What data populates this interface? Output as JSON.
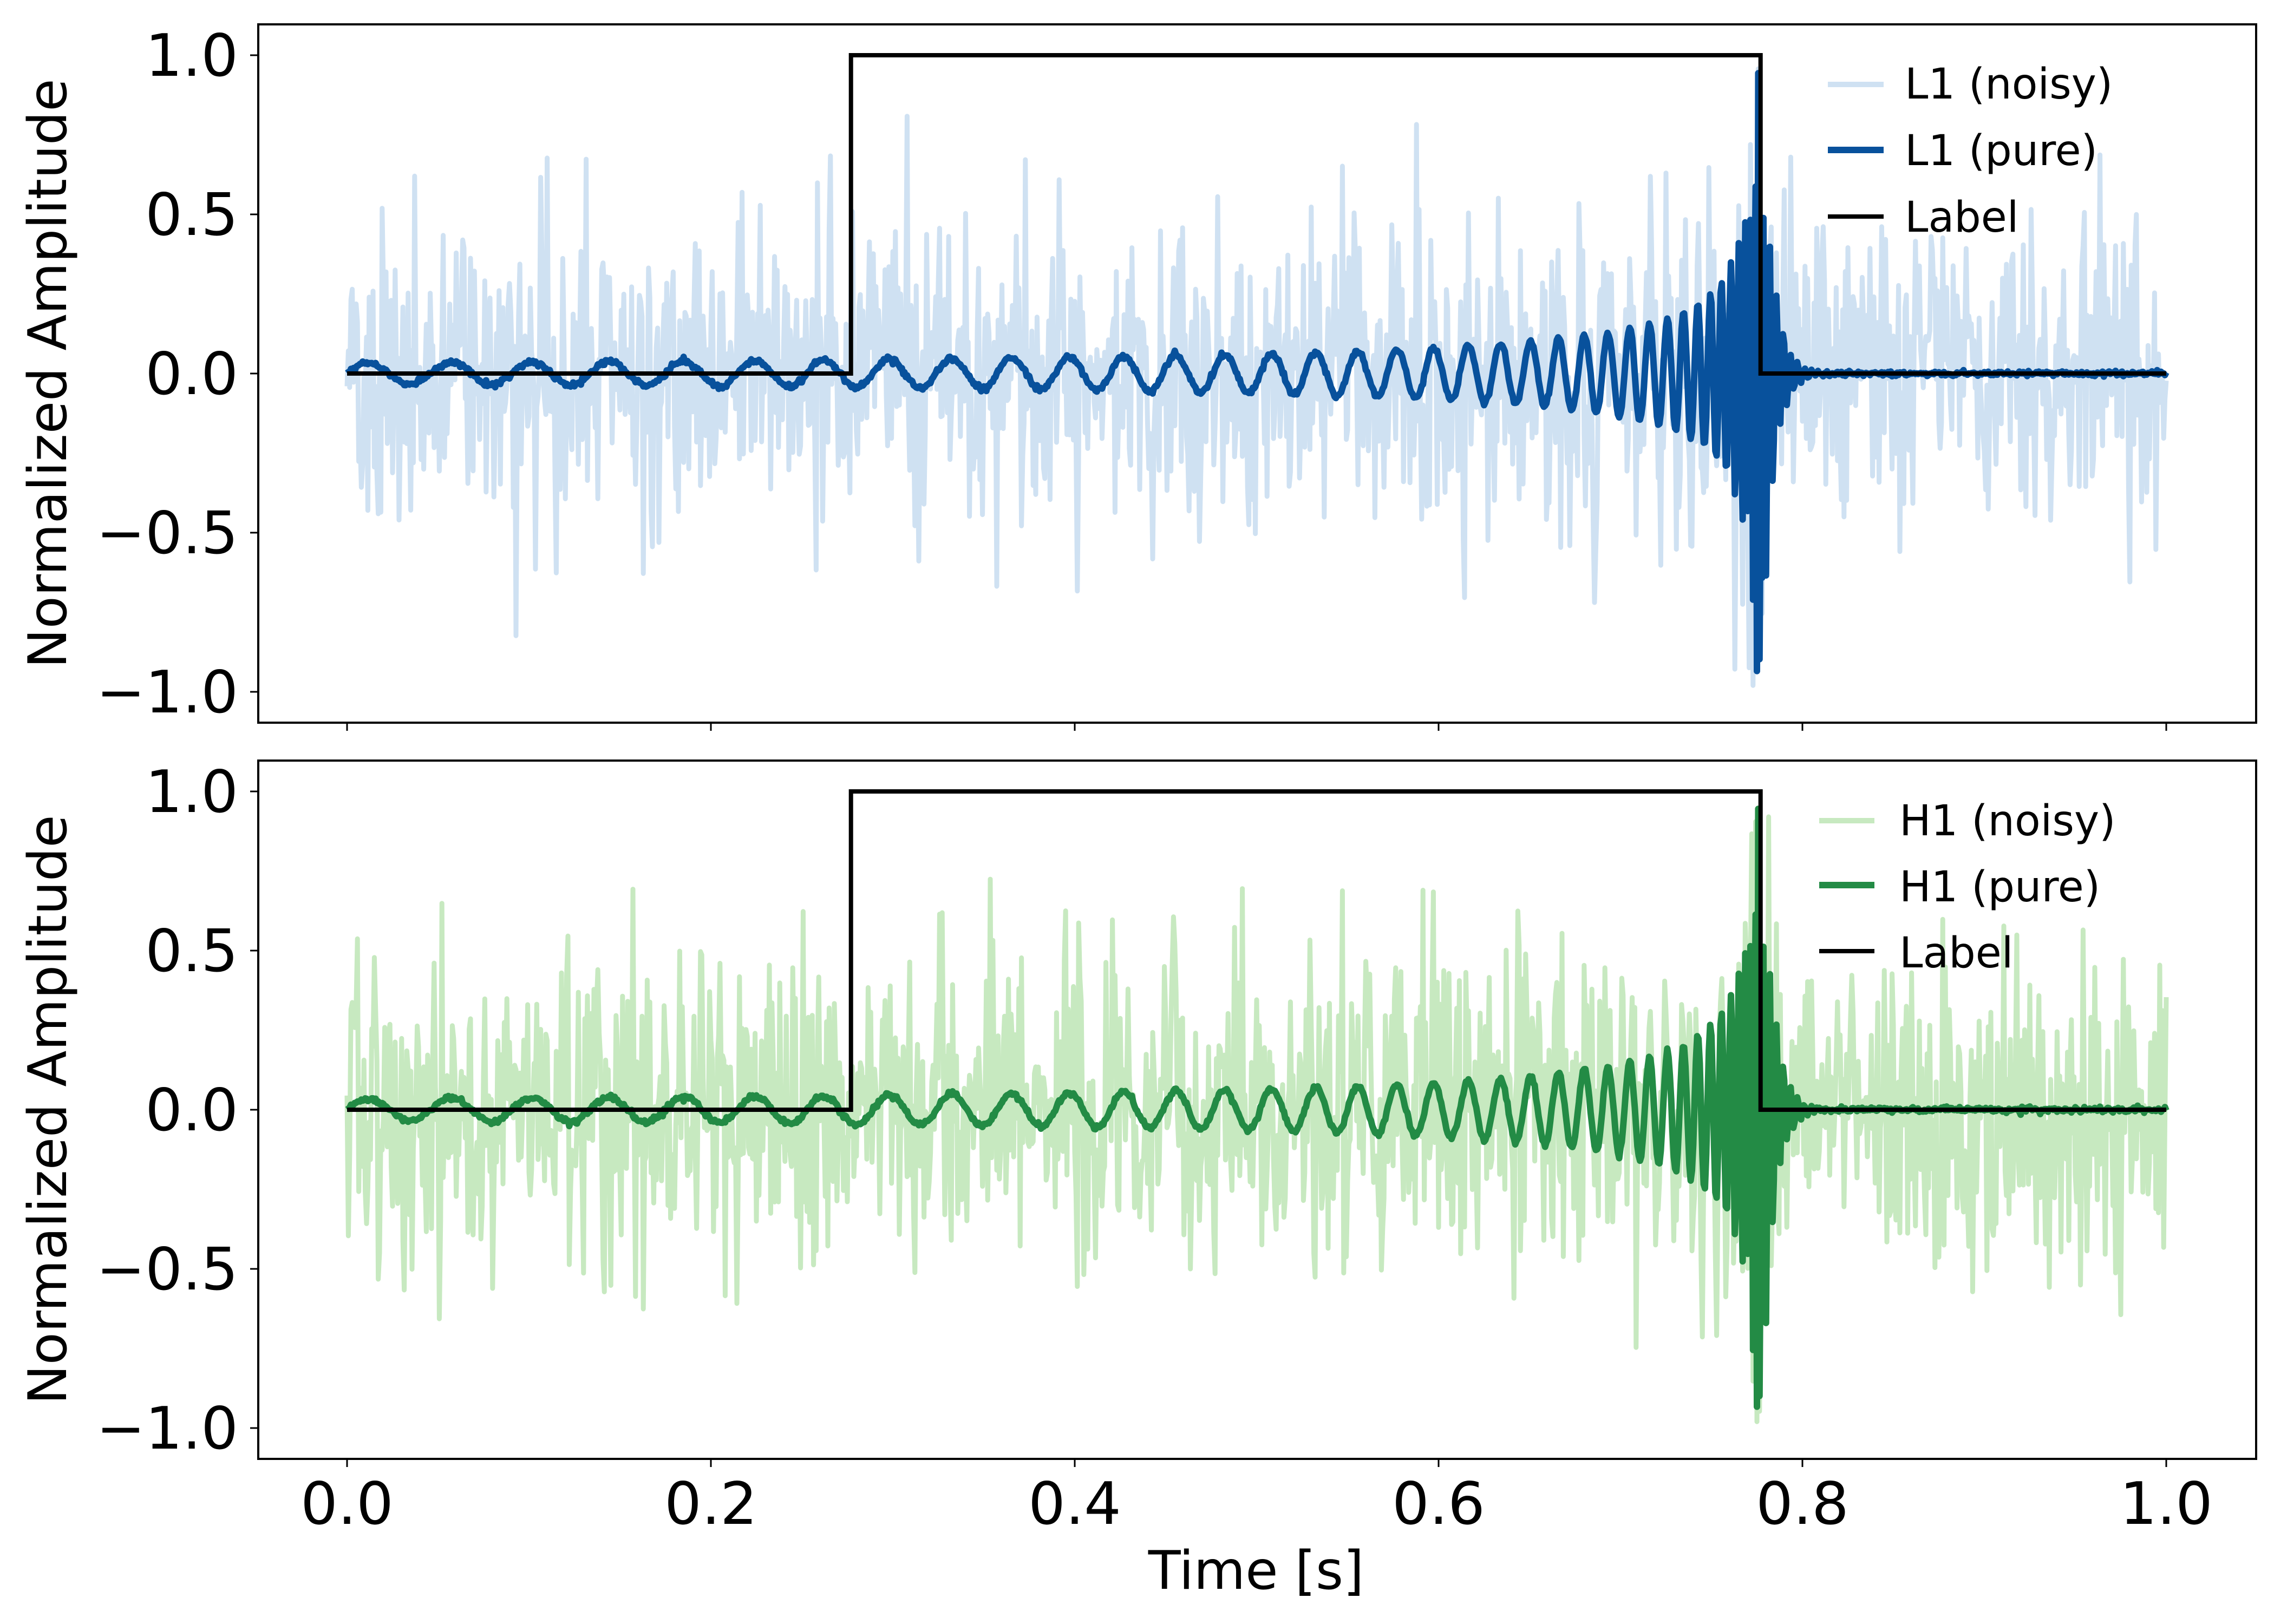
{
  "chart_data": [
    {
      "type": "line",
      "panel": "top",
      "title": "",
      "xlabel": "",
      "ylabel": "Normalized Amplitude",
      "xlim": [
        -0.05,
        1.05
      ],
      "ylim": [
        -1.1,
        1.1
      ],
      "xticks": [
        0.0,
        0.2,
        0.4,
        0.6,
        0.8,
        1.0
      ],
      "xtick_labels_visible": false,
      "yticks": [
        1.0,
        0.5,
        0.0,
        -0.5,
        -1.0
      ],
      "ytick_labels": [
        "1.0",
        "0.5",
        "0.0",
        "−0.5",
        "−1.0"
      ],
      "grid": false,
      "legend_position": "upper right",
      "series": [
        {
          "name": "L1 (noisy)",
          "color": "#cfe1f2",
          "style": "noise band, approx amplitude ±0.3 to ±0.9"
        },
        {
          "name": "L1 (pure)",
          "color": "#08519c",
          "style": "chirp, frequency and amplitude increasing to merger at t≈0.78 s, then ringdown to 0"
        },
        {
          "name": "Label",
          "color": "#000000",
          "x": [
            0.0,
            0.277,
            0.277,
            0.777,
            0.777,
            1.0
          ],
          "y": [
            0,
            0,
            1,
            1,
            0,
            0
          ]
        }
      ],
      "pure_envelope_peaks": {
        "t": [
          0.1,
          0.3,
          0.5,
          0.6,
          0.7,
          0.75,
          0.775,
          0.785
        ],
        "amplitude": [
          0.05,
          0.08,
          0.12,
          0.18,
          0.3,
          0.5,
          0.98,
          0.9
        ]
      }
    },
    {
      "type": "line",
      "panel": "bottom",
      "title": "",
      "xlabel": "Time [s]",
      "ylabel": "Normalized Amplitude",
      "xlim": [
        -0.05,
        1.05
      ],
      "ylim": [
        -1.1,
        1.1
      ],
      "xticks": [
        0.0,
        0.2,
        0.4,
        0.6,
        0.8,
        1.0
      ],
      "xtick_labels": [
        "0.0",
        "0.2",
        "0.4",
        "0.6",
        "0.8",
        "1.0"
      ],
      "yticks": [
        1.0,
        0.5,
        0.0,
        -0.5,
        -1.0
      ],
      "ytick_labels": [
        "1.0",
        "0.5",
        "0.0",
        "−0.5",
        "−1.0"
      ],
      "grid": false,
      "legend_position": "upper right",
      "series": [
        {
          "name": "H1 (noisy)",
          "color": "#c7e9c0",
          "style": "noise band, approx amplitude ±0.3 to ±0.9"
        },
        {
          "name": "H1 (pure)",
          "color": "#238b45",
          "style": "chirp, frequency and amplitude increasing to merger at t≈0.78 s, then ringdown to 0"
        },
        {
          "name": "Label",
          "color": "#000000",
          "x": [
            0.0,
            0.277,
            0.277,
            0.777,
            0.777,
            1.0
          ],
          "y": [
            0,
            0,
            1,
            1,
            0,
            0
          ]
        }
      ],
      "pure_envelope_peaks": {
        "t": [
          0.1,
          0.3,
          0.5,
          0.6,
          0.7,
          0.75,
          0.775,
          0.785
        ],
        "amplitude": [
          0.05,
          0.08,
          0.12,
          0.18,
          0.3,
          0.55,
          1.0,
          0.78
        ]
      }
    }
  ],
  "panels": {
    "top": {
      "ylabel": "Normalized Amplitude",
      "yticks": [
        "1.0",
        "0.5",
        "0.0",
        "−0.5",
        "−1.0"
      ],
      "legend": [
        "L1 (noisy)",
        "L1 (pure)",
        "Label"
      ]
    },
    "bottom": {
      "ylabel": "Normalized Amplitude",
      "yticks": [
        "1.0",
        "0.5",
        "0.0",
        "−0.5",
        "−1.0"
      ],
      "xticks": [
        "0.0",
        "0.2",
        "0.4",
        "0.6",
        "0.8",
        "1.0"
      ],
      "xlabel": "Time [s]",
      "legend": [
        "H1 (noisy)",
        "H1 (pure)",
        "Label"
      ]
    }
  },
  "colors": {
    "l1_noisy": "#cfe1f2",
    "l1_pure": "#08519c",
    "h1_noisy": "#c7e9c0",
    "h1_pure": "#238b45",
    "label": "#000000"
  }
}
